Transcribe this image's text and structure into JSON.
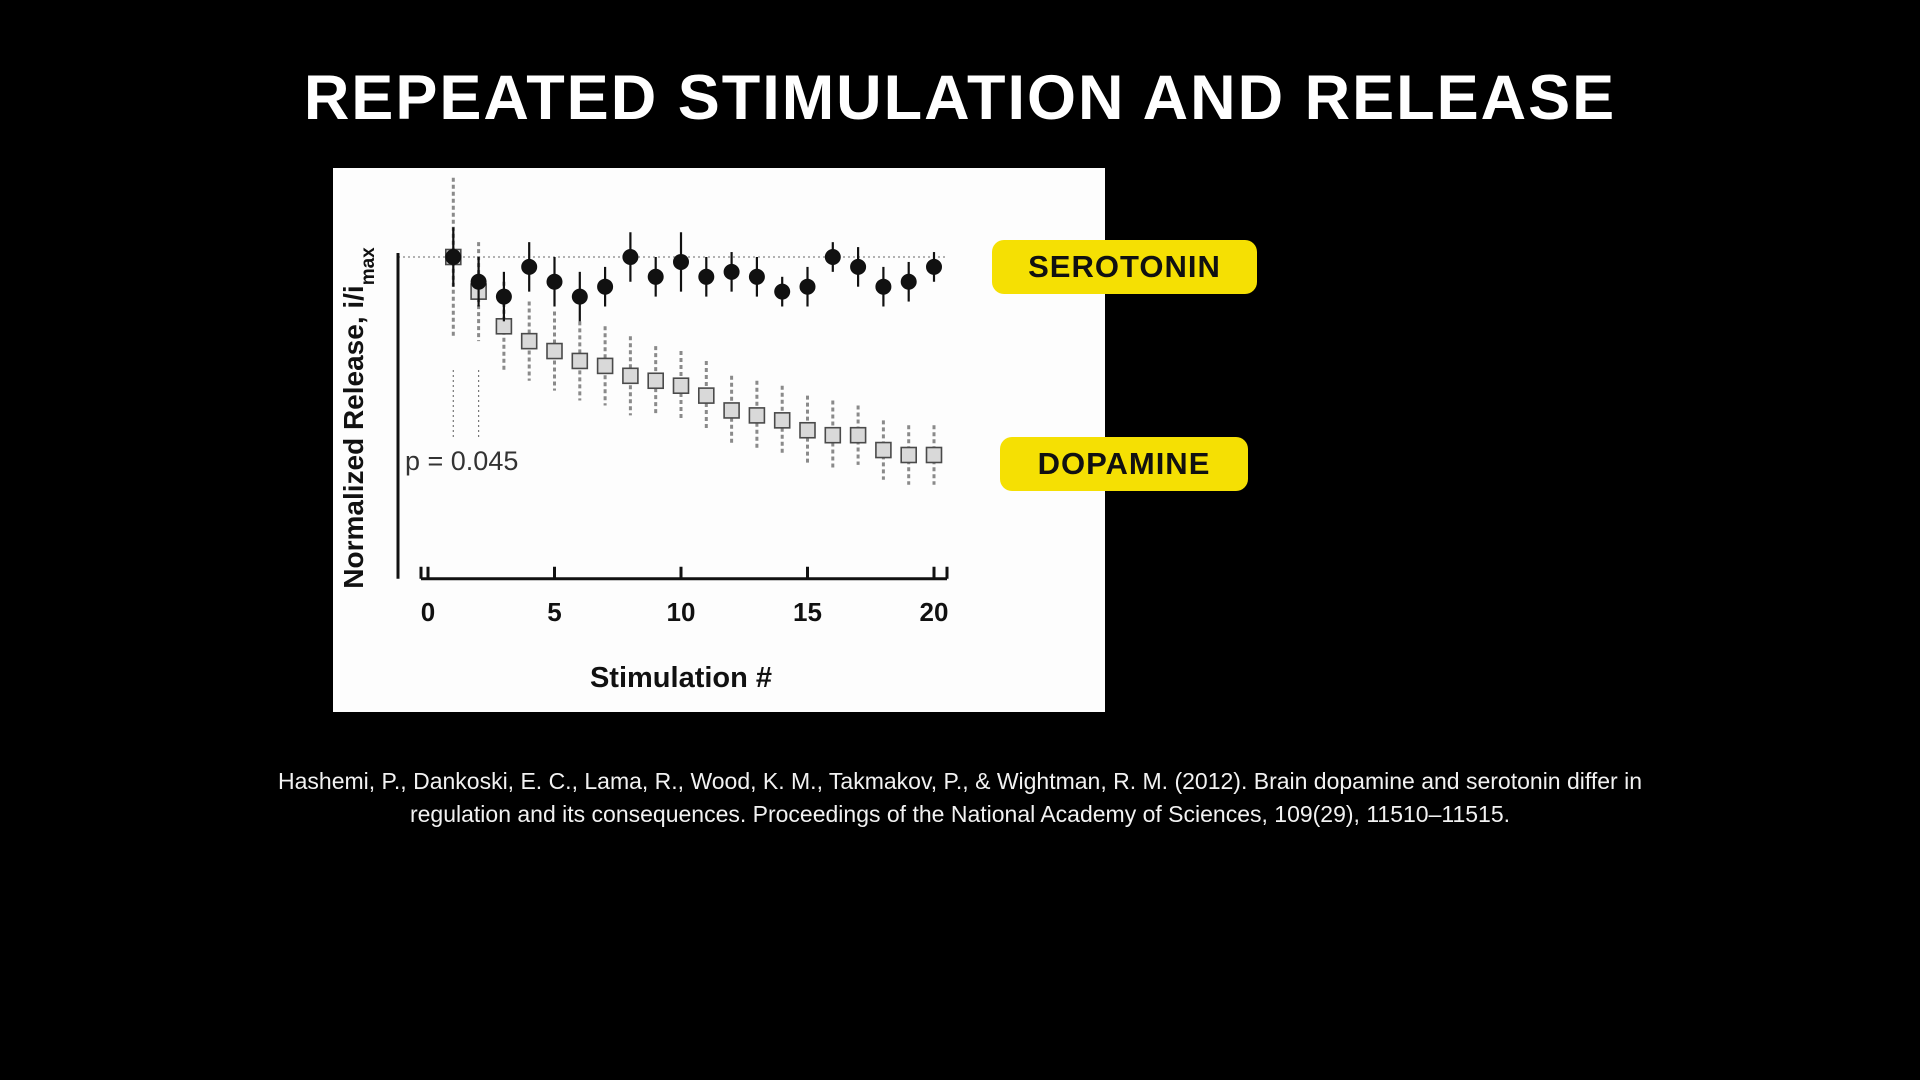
{
  "slide": {
    "title": "REPEATED STIMULATION AND RELEASE",
    "citation": "Hashemi, P., Dankoski, E. C., Lama, R., Wood, K. M., Takmakov, P., & Wightman, R. M. (2012). Brain dopamine and serotonin differ in regulation and its consequences. Proceedings of the National Academy of Sciences, 109(29), 11510–11515."
  },
  "labels": {
    "serotonin": "SEROTONIN",
    "dopamine": "DOPAMINE",
    "accent_color": "#F5E003",
    "pill_text_color": "#111111"
  },
  "chart_data": {
    "type": "scatter",
    "title": "",
    "xlabel": "Stimulation #",
    "ylabel_main": "Normalized Release, i/i",
    "ylabel_sub": "max",
    "annotation": "p = 0.045",
    "x_ticks": [
      0,
      5,
      10,
      15,
      20
    ],
    "xlim": [
      0,
      21
    ],
    "ylim": [
      0.35,
      1.18
    ],
    "grid": false,
    "legend_position": "external-right-pills",
    "reference_line_y": 1.0,
    "sig_lines_x": [
      1,
      2
    ],
    "x": [
      1,
      2,
      3,
      4,
      5,
      6,
      7,
      8,
      9,
      10,
      11,
      12,
      13,
      14,
      15,
      16,
      17,
      18,
      19,
      20
    ],
    "series": [
      {
        "name": "Dopamine",
        "marker": "square",
        "marker_fill": "#d9d9d9",
        "marker_stroke": "#4a4a4a",
        "errorbar_color": "#8a8a8a",
        "errorbar_style": "dashed",
        "y": [
          1.0,
          0.93,
          0.86,
          0.83,
          0.81,
          0.79,
          0.78,
          0.76,
          0.75,
          0.74,
          0.72,
          0.69,
          0.68,
          0.67,
          0.65,
          0.64,
          0.64,
          0.61,
          0.6,
          0.6
        ],
        "yerr": [
          0.16,
          0.1,
          0.09,
          0.08,
          0.08,
          0.08,
          0.08,
          0.08,
          0.07,
          0.07,
          0.07,
          0.07,
          0.07,
          0.07,
          0.07,
          0.07,
          0.06,
          0.06,
          0.06,
          0.06
        ]
      },
      {
        "name": "Serotonin",
        "marker": "circle",
        "marker_fill": "#111111",
        "marker_stroke": "#111111",
        "errorbar_color": "#111111",
        "errorbar_style": "solid",
        "y": [
          1.0,
          0.95,
          0.92,
          0.98,
          0.95,
          0.92,
          0.94,
          1.0,
          0.96,
          0.99,
          0.96,
          0.97,
          0.96,
          0.93,
          0.94,
          1.0,
          0.98,
          0.94,
          0.95,
          0.98
        ],
        "yerr": [
          0.06,
          0.05,
          0.05,
          0.05,
          0.05,
          0.05,
          0.04,
          0.05,
          0.04,
          0.06,
          0.04,
          0.04,
          0.04,
          0.03,
          0.04,
          0.03,
          0.04,
          0.04,
          0.04,
          0.03
        ]
      }
    ]
  }
}
